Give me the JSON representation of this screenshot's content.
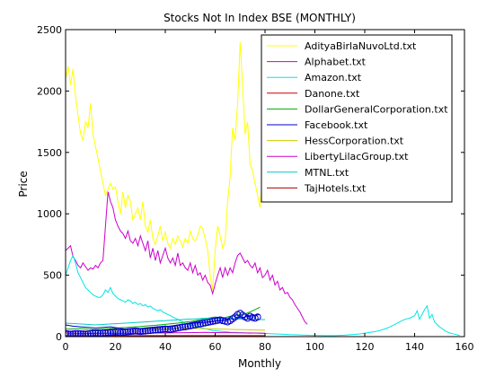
{
  "chart_data": {
    "type": "line",
    "title": "Stocks Not In Index BSE (MONTHLY)",
    "xlabel": "Monthly",
    "ylabel": "Price",
    "xlim": [
      0,
      160
    ],
    "ylim": [
      0,
      2500
    ],
    "xticks": [
      0,
      20,
      40,
      60,
      80,
      100,
      120,
      140,
      160
    ],
    "yticks": [
      0,
      500,
      1000,
      1500,
      2000,
      2500
    ],
    "grid": false,
    "legend_position": "top-right",
    "series": [
      {
        "name": "AdityaBirlaNuvoLtd.txt",
        "color": "#ffff00",
        "marker": "none",
        "x": [
          0,
          1,
          2,
          3,
          4,
          5,
          6,
          7,
          8,
          9,
          10,
          11,
          12,
          13,
          14,
          15,
          16,
          17,
          18,
          19,
          20,
          21,
          22,
          23,
          24,
          25,
          26,
          27,
          28,
          29,
          30,
          31,
          32,
          33,
          34,
          35,
          36,
          37,
          38,
          39,
          40,
          41,
          42,
          43,
          44,
          45,
          46,
          47,
          48,
          49,
          50,
          51,
          52,
          53,
          54,
          55,
          56,
          57,
          58,
          59,
          60,
          61,
          62,
          63,
          64,
          65,
          66,
          67,
          68,
          69,
          70,
          71,
          72,
          73,
          74,
          75,
          76,
          77,
          78,
          79
        ],
        "y": [
          2100,
          2200,
          2050,
          2180,
          1950,
          1800,
          1650,
          1600,
          1750,
          1700,
          1900,
          1650,
          1550,
          1450,
          1350,
          1250,
          1150,
          1200,
          1250,
          1200,
          1220,
          1100,
          1000,
          1180,
          1050,
          1150,
          1100,
          950,
          1000,
          1050,
          950,
          1100,
          900,
          850,
          950,
          800,
          750,
          820,
          900,
          780,
          850,
          760,
          720,
          800,
          750,
          820,
          780,
          730,
          800,
          760,
          860,
          800,
          780,
          820,
          900,
          880,
          800,
          700,
          500,
          380,
          700,
          900,
          820,
          720,
          780,
          1100,
          1300,
          1700,
          1600,
          1900,
          2400,
          2050,
          1650,
          1750,
          1400,
          1350,
          1250,
          1150,
          1050,
          1300
        ]
      },
      {
        "name": "Alphabet.txt",
        "color": "#cc00cc",
        "marker": "none",
        "x": [
          0,
          1,
          2,
          3,
          4,
          5,
          6,
          7,
          8,
          9,
          10,
          11,
          12,
          13,
          14,
          15,
          16,
          17,
          18,
          19,
          20,
          21,
          22,
          23,
          24,
          25,
          26,
          27,
          28,
          29,
          30,
          31,
          32,
          33,
          34,
          35,
          36,
          37,
          38,
          39,
          40,
          41,
          42,
          43,
          44,
          45,
          46,
          47,
          48,
          49,
          50,
          51,
          52,
          53,
          54,
          55,
          56,
          57,
          58,
          59,
          60,
          61,
          62,
          63,
          64,
          65,
          66,
          67,
          68,
          69,
          70,
          71,
          72,
          73,
          74,
          75,
          76,
          77,
          78,
          79,
          80,
          81,
          82,
          83,
          84,
          85,
          86,
          87,
          88,
          89,
          90,
          91,
          92,
          93,
          94,
          95,
          96,
          97
        ],
        "y": [
          700,
          720,
          740,
          650,
          620,
          580,
          560,
          600,
          570,
          540,
          560,
          550,
          580,
          560,
          600,
          620,
          900,
          1180,
          1100,
          1050,
          950,
          900,
          860,
          840,
          800,
          860,
          780,
          760,
          800,
          740,
          820,
          760,
          700,
          780,
          640,
          720,
          620,
          700,
          600,
          660,
          720,
          640,
          600,
          640,
          580,
          680,
          580,
          600,
          560,
          540,
          600,
          520,
          580,
          500,
          520,
          460,
          500,
          440,
          420,
          350,
          430,
          500,
          560,
          480,
          560,
          500,
          560,
          520,
          600,
          660,
          680,
          640,
          600,
          620,
          580,
          560,
          600,
          520,
          560,
          480,
          500,
          540,
          460,
          500,
          420,
          450,
          380,
          400,
          350,
          360,
          320,
          300,
          260,
          230,
          200,
          160,
          120,
          100
        ]
      },
      {
        "name": "Amazon.txt",
        "color": "#00e5e5",
        "marker": "none",
        "x": [
          0,
          1,
          2,
          3,
          4,
          5,
          6,
          7,
          8,
          9,
          10,
          11,
          12,
          13,
          14,
          15,
          16,
          17,
          18,
          19,
          20,
          21,
          22,
          23,
          24,
          25,
          26,
          27,
          28,
          29,
          30,
          31,
          32,
          33,
          34,
          35,
          36,
          37,
          38,
          39,
          40,
          41,
          42,
          43,
          44,
          45,
          46,
          47,
          48,
          49,
          50,
          51,
          52,
          53,
          54,
          55,
          56,
          57,
          58,
          59,
          60,
          61,
          62,
          63,
          64,
          65,
          66,
          67,
          68,
          69,
          70,
          72,
          74,
          76,
          78,
          80,
          82,
          84,
          86,
          88,
          90,
          92,
          94,
          96,
          98,
          100,
          102,
          104,
          106,
          108,
          110,
          112,
          114,
          116,
          118,
          120,
          122,
          124,
          126,
          128,
          130,
          132,
          134,
          136,
          138,
          140,
          141,
          142,
          143,
          144,
          145,
          146,
          147,
          148,
          150,
          152,
          154,
          156,
          158
        ],
        "y": [
          500,
          560,
          620,
          660,
          600,
          520,
          480,
          440,
          400,
          380,
          360,
          340,
          330,
          320,
          320,
          340,
          380,
          360,
          400,
          350,
          330,
          310,
          300,
          290,
          280,
          300,
          290,
          270,
          280,
          260,
          270,
          250,
          260,
          240,
          250,
          230,
          220,
          210,
          220,
          200,
          190,
          180,
          170,
          160,
          150,
          140,
          130,
          120,
          110,
          100,
          100,
          90,
          90,
          80,
          75,
          70,
          65,
          60,
          55,
          50,
          48,
          46,
          44,
          42,
          40,
          38,
          36,
          35,
          34,
          33,
          32,
          30,
          28,
          30,
          28,
          26,
          24,
          22,
          20,
          18,
          16,
          15,
          14,
          12,
          10,
          10,
          9,
          8,
          8,
          8,
          10,
          12,
          15,
          18,
          22,
          28,
          34,
          40,
          50,
          62,
          78,
          98,
          120,
          140,
          150,
          170,
          210,
          140,
          180,
          220,
          250,
          150,
          180,
          120,
          80,
          50,
          30,
          20,
          10
        ]
      },
      {
        "name": "Danone.txt",
        "color": "#cc0000",
        "marker": "none",
        "x": [
          0,
          5,
          10,
          15,
          20,
          25,
          30,
          35,
          40,
          45,
          50,
          55,
          60,
          65,
          70,
          75,
          80
        ],
        "y": [
          3,
          3,
          3,
          3,
          3,
          3,
          3,
          3,
          3,
          3,
          3,
          3,
          3,
          3,
          3,
          3,
          3
        ]
      },
      {
        "name": "DollarGeneralCorporation.txt",
        "color": "#00aa00",
        "marker": "none",
        "x": [
          0,
          3,
          6,
          9,
          12,
          15,
          18,
          21,
          24,
          27,
          30,
          33,
          36,
          39,
          42,
          45,
          48,
          51,
          54,
          57,
          60,
          63,
          66,
          69,
          72,
          75,
          78
        ],
        "y": [
          60,
          62,
          65,
          60,
          58,
          62,
          66,
          70,
          74,
          78,
          82,
          88,
          92,
          98,
          104,
          110,
          118,
          126,
          138,
          150,
          160,
          150,
          165,
          175,
          185,
          210,
          240
        ]
      },
      {
        "name": "Facebook.txt",
        "color": "#0000cc",
        "marker": "none",
        "x": [
          0,
          3,
          6,
          9,
          12,
          15,
          18,
          21,
          24,
          27,
          30,
          33,
          36,
          39,
          42,
          45,
          48,
          51,
          54,
          57,
          60,
          63,
          66,
          69,
          72,
          75,
          78
        ],
        "y": [
          95,
          85,
          80,
          75,
          70,
          75,
          80,
          70,
          60,
          58,
          62,
          66,
          72,
          78,
          86,
          94,
          100,
          108,
          114,
          120,
          126,
          132,
          140,
          150,
          160,
          170,
          180
        ]
      },
      {
        "name": "HessCorporation.txt",
        "color": "#cccc00",
        "marker": "none",
        "x": [
          0,
          4,
          8,
          12,
          16,
          20,
          24,
          28,
          32,
          36,
          40,
          44,
          48,
          52,
          56,
          60,
          64,
          68,
          72,
          76,
          80
        ],
        "y": [
          40,
          42,
          45,
          48,
          50,
          52,
          55,
          58,
          60,
          62,
          64,
          66,
          68,
          66,
          64,
          62,
          60,
          58,
          56,
          54,
          52
        ]
      },
      {
        "name": "LibertyLilacGroup.txt",
        "color": "#cc00cc",
        "marker": "none",
        "x": [
          0,
          4,
          8,
          12,
          16,
          20,
          24,
          28,
          32,
          36,
          40,
          44,
          48,
          52,
          56,
          60,
          64,
          68,
          72,
          76,
          80
        ],
        "y": [
          30,
          28,
          26,
          25,
          24,
          25,
          26,
          27,
          28,
          29,
          30,
          31,
          32,
          33,
          34,
          33,
          32,
          31,
          30,
          29,
          28
        ]
      },
      {
        "name": "MTNL.txt",
        "color": "#00cccc",
        "marker": "none",
        "x": [
          0,
          4,
          8,
          12,
          16,
          20,
          24,
          28,
          32,
          36,
          40,
          44,
          48,
          52,
          56,
          60,
          64,
          68,
          72,
          76,
          80
        ],
        "y": [
          110,
          105,
          100,
          95,
          100,
          105,
          110,
          115,
          120,
          125,
          130,
          135,
          140,
          145,
          150,
          148,
          146,
          144,
          142,
          140,
          138
        ]
      },
      {
        "name": "TajHotels.txt",
        "color": "#aa0000",
        "marker": "none",
        "x": [
          0,
          4,
          8,
          12,
          16,
          20,
          24,
          28,
          32,
          36,
          40,
          44,
          48,
          52,
          56,
          60,
          64,
          68,
          72,
          76,
          80
        ],
        "y": [
          8,
          8,
          8,
          8,
          8,
          8,
          8,
          8,
          8,
          8,
          8,
          8,
          8,
          8,
          8,
          8,
          8,
          8,
          8,
          8,
          8
        ]
      },
      {
        "name": "",
        "color": "#0000cc",
        "marker": "circle",
        "x": [
          0,
          1,
          2,
          3,
          4,
          5,
          6,
          7,
          8,
          9,
          10,
          11,
          12,
          13,
          14,
          15,
          16,
          17,
          18,
          19,
          20,
          21,
          22,
          23,
          24,
          25,
          26,
          27,
          28,
          29,
          30,
          31,
          32,
          33,
          34,
          35,
          36,
          37,
          38,
          39,
          40,
          41,
          42,
          43,
          44,
          45,
          46,
          47,
          48,
          49,
          50,
          51,
          52,
          53,
          54,
          55,
          56,
          57,
          58,
          59,
          60,
          61,
          62,
          63,
          64,
          65,
          66,
          67,
          68,
          69,
          70,
          71,
          72,
          73,
          74,
          75,
          76,
          77
        ],
        "y": [
          25,
          22,
          20,
          22,
          25,
          24,
          23,
          22,
          20,
          22,
          25,
          28,
          30,
          28,
          26,
          28,
          30,
          32,
          34,
          36,
          38,
          36,
          34,
          36,
          38,
          40,
          42,
          44,
          46,
          44,
          42,
          44,
          46,
          48,
          50,
          52,
          54,
          56,
          58,
          60,
          62,
          60,
          58,
          62,
          66,
          70,
          74,
          78,
          80,
          84,
          88,
          92,
          96,
          100,
          104,
          108,
          112,
          116,
          120,
          124,
          128,
          132,
          136,
          130,
          125,
          120,
          130,
          145,
          160,
          180,
          190,
          175,
          160,
          150,
          165,
          155,
          150,
          160
        ]
      }
    ]
  }
}
